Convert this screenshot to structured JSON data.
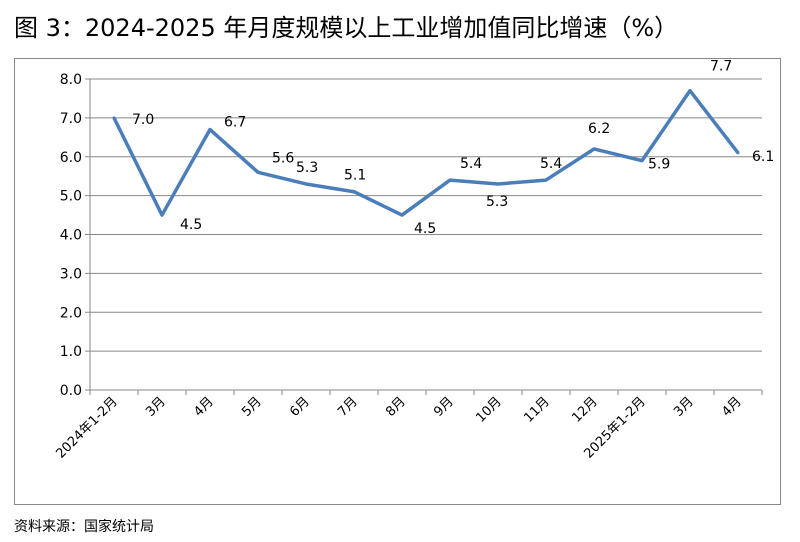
{
  "title": "图 3：2024-2025 年月度规模以上工业增加值同比增速（%）",
  "source": "资料来源：国家统计局",
  "chart_data": {
    "type": "line",
    "title": "图 3：2024-2025 年月度规模以上工业增加值同比增速（%）",
    "categories": [
      "2024年1-2月",
      "3月",
      "4月",
      "5月",
      "6月",
      "7月",
      "8月",
      "9月",
      "10月",
      "11月",
      "12月",
      "2025年1-2月",
      "3月",
      "4月"
    ],
    "values": [
      7.0,
      4.5,
      6.7,
      5.6,
      5.3,
      5.1,
      4.5,
      5.4,
      5.3,
      5.4,
      6.2,
      5.9,
      7.7,
      6.1
    ],
    "data_labels": [
      "7.0",
      "4.5",
      "6.7",
      "5.6",
      "5.3",
      "5.1",
      "4.5",
      "5.4",
      "5.3",
      "5.4",
      "6.2",
      "5.9",
      "7.7",
      "6.1"
    ],
    "yticks": [
      "0.0",
      "1.0",
      "2.0",
      "3.0",
      "4.0",
      "5.0",
      "6.0",
      "7.0",
      "8.0"
    ],
    "ylim": [
      0,
      8
    ],
    "grid": true,
    "legend": "none",
    "line_color": "#4a7ebb",
    "grid_color": "#888888"
  }
}
